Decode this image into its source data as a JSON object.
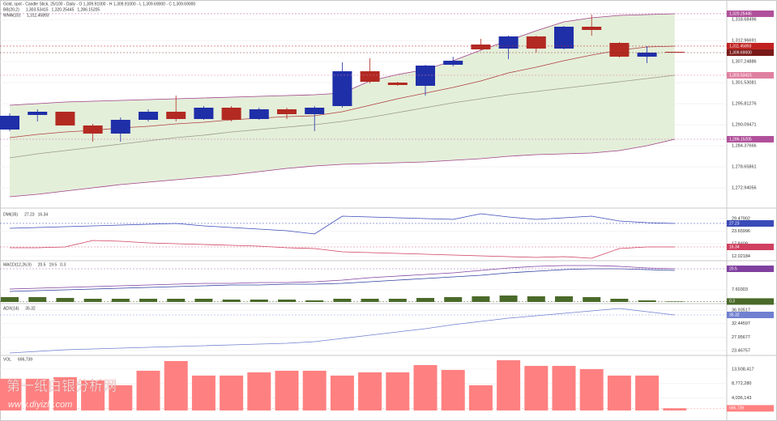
{
  "chart_data": [
    {
      "type": "candlestick",
      "title": "Gold, spot - Candle Stick, 25/100 - Daily - O 1,309.91000 - H 1,309.91000 - L 1,309.69000 - C 1,309.69000",
      "legend": [
        {
          "label": "BB(20,2)",
          "values": [
            "1,303.53415",
            "1,320.25445",
            "1,286.15205"
          ],
          "color": "#a0408a"
        },
        {
          "label": "WMA(10)",
          "values": [
            "1,311.45893"
          ],
          "color": "#c02020"
        }
      ],
      "up_color": "#1f2fa8",
      "down_color": "#b22a22",
      "band_fill": "#e4efd9",
      "open": [
        1288.79,
        1292.75,
        1293.63,
        1289.89,
        1287.69,
        1291.43,
        1293.63,
        1291.65,
        1294.73,
        1291.65,
        1294.29,
        1292.97,
        1295.17,
        1304.63,
        1301.55,
        1300.67,
        1306.39,
        1311.89,
        1310.79,
        1314.09,
        1310.79,
        1316.73,
        1312.33,
        1308.59,
        1309.91
      ],
      "high": [
        1293.19,
        1294.29,
        1293.63,
        1290.33,
        1292.09,
        1294.29,
        1298.03,
        1295.17,
        1295.17,
        1294.73,
        1294.73,
        1295.17,
        1307.05,
        1308.15,
        1301.77,
        1306.39,
        1308.59,
        1313.43,
        1314.31,
        1314.31,
        1316.95,
        1320.03,
        1312.55,
        1311.45,
        1309.91
      ],
      "low": [
        1288.35,
        1290.99,
        1289.89,
        1285.49,
        1285.49,
        1290.99,
        1290.99,
        1291.43,
        1290.99,
        1291.43,
        1291.65,
        1288.35,
        1294.73,
        1301.33,
        1300.67,
        1298.03,
        1305.95,
        1310.35,
        1307.93,
        1309.69,
        1310.57,
        1314.31,
        1308.37,
        1306.83,
        1309.69
      ],
      "close": [
        1292.53,
        1293.63,
        1289.89,
        1287.69,
        1291.43,
        1293.63,
        1291.65,
        1294.73,
        1291.43,
        1294.29,
        1292.97,
        1294.73,
        1304.63,
        1301.77,
        1300.89,
        1306.17,
        1307.49,
        1310.57,
        1314.09,
        1310.79,
        1316.73,
        1315.85,
        1308.59,
        1309.69,
        1309.69
      ],
      "series": [
        {
          "color": "#a0408a",
          "values": [
            1295.39,
            1295.83,
            1296.27,
            1296.49,
            1296.71,
            1296.93,
            1297.15,
            1297.37,
            1297.59,
            1297.81,
            1298.03,
            1298.25,
            1298.69,
            1301.99,
            1303.75,
            1305.07,
            1307.49,
            1310.35,
            1312.99,
            1315.63,
            1318.05,
            1319.15,
            1319.81,
            1320.03,
            1320.25
          ]
        },
        {
          "color": "#9a9a8a",
          "values": [
            1281.09,
            1282.19,
            1283.07,
            1283.95,
            1284.83,
            1285.71,
            1286.59,
            1287.25,
            1288.13,
            1288.79,
            1289.45,
            1290.11,
            1290.99,
            1292.09,
            1293.41,
            1294.73,
            1296.05,
            1297.15,
            1298.25,
            1299.13,
            1300.01,
            1300.89,
            1301.77,
            1302.65,
            1303.53
          ]
        },
        {
          "color": "#a0408a",
          "values": [
            1270.53,
            1271.19,
            1272.07,
            1272.95,
            1273.83,
            1274.49,
            1275.15,
            1275.81,
            1276.47,
            1277.35,
            1278.23,
            1278.89,
            1279.33,
            1279.55,
            1279.77,
            1279.99,
            1280.43,
            1280.87,
            1281.53,
            1281.97,
            1282.19,
            1282.41,
            1283.07,
            1284.39,
            1286.15
          ]
        },
        {
          "color": "#b04040",
          "values": [
            1286.59,
            1287.47,
            1288.13,
            1288.57,
            1289.23,
            1289.67,
            1290.33,
            1290.77,
            1291.43,
            1291.87,
            1292.31,
            1292.53,
            1293.63,
            1295.39,
            1297.15,
            1298.69,
            1300.23,
            1301.99,
            1304.19,
            1305.73,
            1307.49,
            1309.03,
            1310.35,
            1311.23,
            1311.45
          ]
        }
      ],
      "ylim": [
        1267.89,
        1322.23
      ],
      "yticks": [
        {
          "value": 1318.68496,
          "label": "1,318.68496"
        },
        {
          "value": 1312.96691,
          "label": "1,312.96691"
        },
        {
          "value": 1307.24886,
          "label": "1,307.24886"
        },
        {
          "value": 1301.53081,
          "label": "1,301.53081"
        },
        {
          "value": 1295.81276,
          "label": "1,295.81276"
        },
        {
          "value": 1290.09471,
          "label": "1,290.09471"
        },
        {
          "value": 1284.37666,
          "label": "1,284.37666"
        },
        {
          "value": 1278.65861,
          "label": "1,278.65861"
        },
        {
          "value": 1272.94056,
          "label": "1,272.94056"
        }
      ],
      "price_tags": [
        {
          "value": 1320.25445,
          "label": "1,320.25445",
          "color": "#b0509a"
        },
        {
          "value": 1311.45893,
          "label": "1,311.45893",
          "color": "#c02020"
        },
        {
          "value": 1309.69,
          "label": "1,309.69000",
          "color": "#7a1a1a"
        },
        {
          "value": 1303.53415,
          "label": "1,303.53415",
          "color": "#e080a0"
        },
        {
          "value": 1286.15205,
          "label": "1,286.15205",
          "color": "#b0509a"
        }
      ]
    },
    {
      "type": "line",
      "title": "DMI(35)",
      "header_values": [
        27.23,
        16.34
      ],
      "series": [
        {
          "color": "#3a4ab8",
          "values": [
            24.98,
            25.35,
            25.72,
            26.1,
            26.48,
            26.85,
            27.23,
            26.1,
            25.35,
            24.6,
            23.85,
            22.35,
            30.61,
            30.23,
            29.85,
            29.48,
            29.1,
            31.73,
            30.23,
            29.1,
            29.85,
            30.61,
            28.35,
            27.6,
            27.23
          ]
        },
        {
          "color": "#d04060",
          "values": [
            15.96,
            15.96,
            16.34,
            19.34,
            18.97,
            18.22,
            17.84,
            17.47,
            17.09,
            16.72,
            15.96,
            15.59,
            14.09,
            13.71,
            13.34,
            12.96,
            12.59,
            12.21,
            11.84,
            11.46,
            11.84,
            11.08,
            15.59,
            16.34,
            16.34
          ]
        }
      ],
      "ylim": [
        10.71,
        32.48
      ],
      "yticks": [
        12.02184,
        17.8409,
        23.65996,
        29.47902
      ],
      "price_tags": [
        {
          "value": 27.23,
          "color": "#3a4ab8"
        },
        {
          "value": 16.34,
          "color": "#d04060"
        }
      ]
    },
    {
      "type": "combo",
      "title": "MACD(12,26,9)",
      "header_values": [
        20.5,
        19.5,
        0.3
      ],
      "series": [
        {
          "color": "#8040a0",
          "values": [
            8,
            8.5,
            9,
            9.5,
            10,
            10.5,
            11,
            11.5,
            11.5,
            12,
            12,
            12.5,
            13.5,
            15,
            16,
            17,
            18,
            19.5,
            21,
            22,
            22.5,
            22.5,
            22,
            21,
            20.5
          ]
        },
        {
          "color": "#3040a0",
          "values": [
            6.5,
            7,
            7.5,
            8,
            8.5,
            9,
            9.5,
            10,
            10.5,
            10.5,
            11,
            11,
            11.5,
            12.5,
            13.5,
            14.5,
            15.5,
            16.5,
            18,
            19,
            20,
            20.5,
            20.5,
            20,
            19.5
          ]
        },
        {
          "color": "#4a6a2a",
          "kind": "bar",
          "values": [
            3,
            3,
            2.5,
            2,
            2,
            2,
            2,
            2,
            1.5,
            1.5,
            1.5,
            1,
            2,
            2,
            2,
            2.5,
            3,
            3.5,
            4,
            3.5,
            3.5,
            3,
            2,
            1,
            0.3
          ]
        }
      ],
      "ylim": [
        0,
        25
      ],
      "yticks": [
        7.60303
      ],
      "price_tags": [
        {
          "value": 20.5,
          "color": "#8040a0"
        },
        {
          "value": 0.3,
          "color": "#4a6a2a"
        }
      ]
    },
    {
      "type": "line",
      "title": "ADX(14)",
      "header_values": [
        35.32
      ],
      "series": [
        {
          "color": "#7080d0",
          "values": [
            22.66,
            23.2,
            23.74,
            24.0,
            24.27,
            24.54,
            24.81,
            25.08,
            25.35,
            25.62,
            25.89,
            26.43,
            27.51,
            28.58,
            29.66,
            30.74,
            32.09,
            33.16,
            34.24,
            35.05,
            35.85,
            36.67,
            37.47,
            36.4,
            35.32
          ]
        }
      ],
      "ylim": [
        22.39,
        38.28
      ],
      "yticks": [
        23.46757,
        27.95677,
        32.44597,
        36.93517
      ],
      "price_tags": [
        {
          "value": 35.32,
          "color": "#7080d0"
        }
      ]
    },
    {
      "type": "bar",
      "title": "VOL",
      "header_values": [
        {
          "value": 696739,
          "label": "696,739"
        }
      ],
      "color": "#ff8080",
      "values": [
        10340000,
        10340000,
        10870000,
        9810000,
        8240000,
        12970000,
        16130000,
        11390000,
        11390000,
        12450000,
        12970000,
        12970000,
        11390000,
        12450000,
        12450000,
        14810000,
        13230000,
        8240000,
        16390000,
        14550000,
        14550000,
        13500000,
        11390000,
        11390000,
        696739
      ],
      "ylim": [
        0,
        17700000
      ],
      "yticks": [
        {
          "value": 4036143,
          "label": "4,036,143"
        },
        {
          "value": 8772280,
          "label": "8,772,280"
        },
        {
          "value": 13508417,
          "label": "13,508,417"
        }
      ],
      "price_tags": [
        {
          "value": 696739,
          "label": "696,739",
          "color": "#ff8080"
        }
      ]
    }
  ],
  "watermark": {
    "text": "第一纸白银分析网",
    "url": "www.diyizly.com"
  }
}
